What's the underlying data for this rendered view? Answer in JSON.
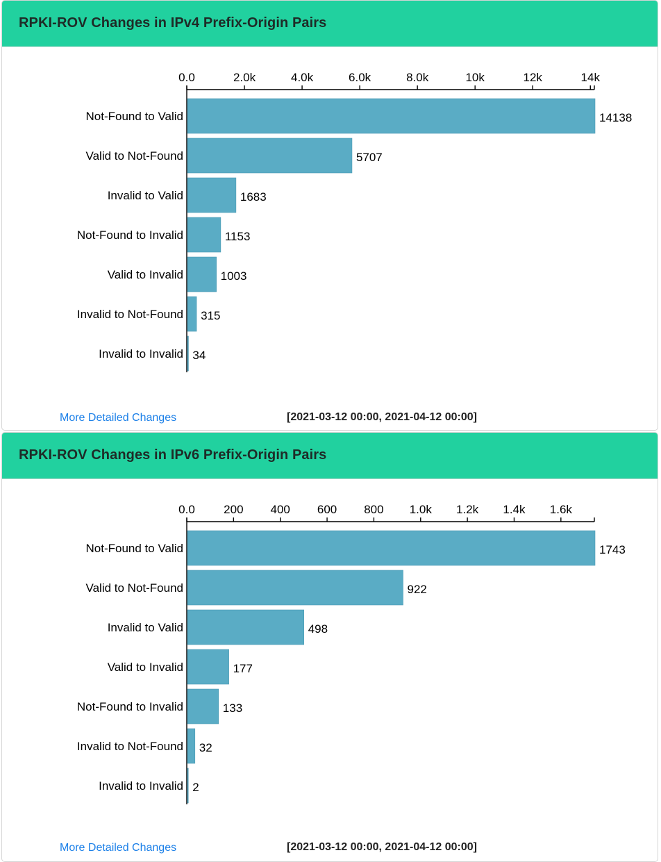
{
  "chart_data": [
    {
      "type": "bar",
      "orientation": "horizontal",
      "title": "RPKI-ROV Changes in IPv4 Prefix-Origin Pairs",
      "categories": [
        "Not-Found to Valid",
        "Valid to Not-Found",
        "Invalid to Valid",
        "Not-Found to Invalid",
        "Valid to Invalid",
        "Invalid to Not-Found",
        "Invalid to Invalid"
      ],
      "values": [
        14138,
        5707,
        1683,
        1153,
        1003,
        315,
        34
      ],
      "value_labels": [
        "14138",
        "5707",
        "1683",
        "1153",
        "1003",
        "315",
        "34"
      ],
      "xlim": [
        0,
        14138
      ],
      "ticks": [
        0,
        2000,
        4000,
        6000,
        8000,
        10000,
        12000,
        14000
      ],
      "tick_labels": [
        "0.0",
        "2.0k",
        "4.0k",
        "6.0k",
        "8.0k",
        "10k",
        "12k",
        "14k"
      ],
      "axis_position": "top",
      "bar_color": "#5aacc5",
      "footer_link": "More Detailed Changes",
      "time_range": "[2021-03-12 00:00, 2021-04-12 00:00]"
    },
    {
      "type": "bar",
      "orientation": "horizontal",
      "title": "RPKI-ROV Changes in IPv6 Prefix-Origin Pairs",
      "categories": [
        "Not-Found to Valid",
        "Valid to Not-Found",
        "Invalid to Valid",
        "Valid to Invalid",
        "Not-Found to Invalid",
        "Invalid to Not-Found",
        "Invalid to Invalid"
      ],
      "values": [
        1743,
        922,
        498,
        177,
        133,
        32,
        2
      ],
      "value_labels": [
        "1743",
        "922",
        "498",
        "177",
        "133",
        "32",
        "2"
      ],
      "xlim": [
        0,
        1743
      ],
      "ticks": [
        0,
        200,
        400,
        600,
        800,
        1000,
        1200,
        1400,
        1600
      ],
      "tick_labels": [
        "0.0",
        "200",
        "400",
        "600",
        "800",
        "1.0k",
        "1.2k",
        "1.4k",
        "1.6k"
      ],
      "axis_position": "top",
      "bar_color": "#5aacc5",
      "footer_link": "More Detailed Changes",
      "time_range": "[2021-03-12 00:00, 2021-04-12 00:00]"
    }
  ],
  "colors": {
    "header_bg": "#21d19f",
    "bar": "#5aacc5",
    "link": "#1a7fe8"
  }
}
